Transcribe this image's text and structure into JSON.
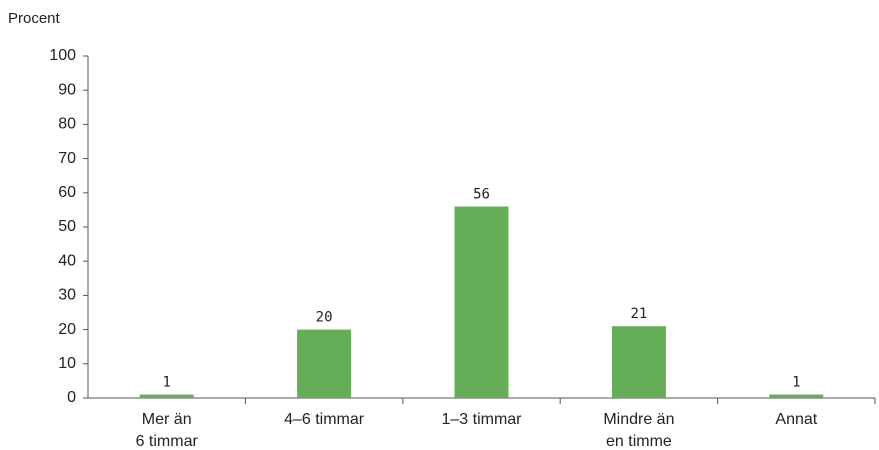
{
  "chart_data": {
    "type": "bar",
    "y_label": "Procent",
    "categories": [
      [
        "Mer än",
        "6 timmar"
      ],
      [
        "4–6 timmar"
      ],
      [
        "1–3 timmar"
      ],
      [
        "Mindre än",
        "en timme"
      ],
      [
        "Annat"
      ]
    ],
    "values": [
      1,
      20,
      56,
      21,
      1
    ],
    "color": "#66ad5a",
    "ylim": [
      0,
      100
    ],
    "yticks": [
      0,
      10,
      20,
      30,
      40,
      50,
      60,
      70,
      80,
      90,
      100
    ],
    "grid": false
  }
}
